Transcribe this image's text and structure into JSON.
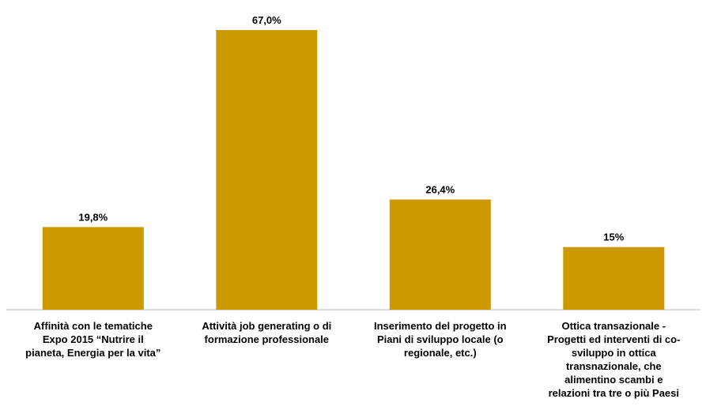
{
  "chart_data": {
    "type": "bar",
    "title": "",
    "xlabel": "",
    "ylabel": "",
    "ylim": [
      0,
      70
    ],
    "grid": false,
    "legend": "none",
    "bar_color": "#CC9900",
    "axis_color": "#BFBFBF",
    "categories": [
      [
        "Affinità con le tematiche",
        "Expo 2015 “Nutrire il",
        "pianeta, Energia per la vita”"
      ],
      [
        "Attività job generating o di",
        "formazione professionale"
      ],
      [
        "Inserimento del progetto in",
        "Piani di sviluppo locale (o",
        "regionale, etc.)"
      ],
      [
        "Ottica transazionale -",
        "Progetti ed interventi di co-",
        "sviluppo in ottica",
        "transnazionale, che",
        "alimentino scambi e",
        "relazioni tra tre o più Paesi"
      ]
    ],
    "values": [
      19.8,
      67.0,
      26.4,
      15
    ],
    "value_labels": [
      "19,8%",
      "67,0%",
      "26,4%",
      "15%"
    ]
  }
}
